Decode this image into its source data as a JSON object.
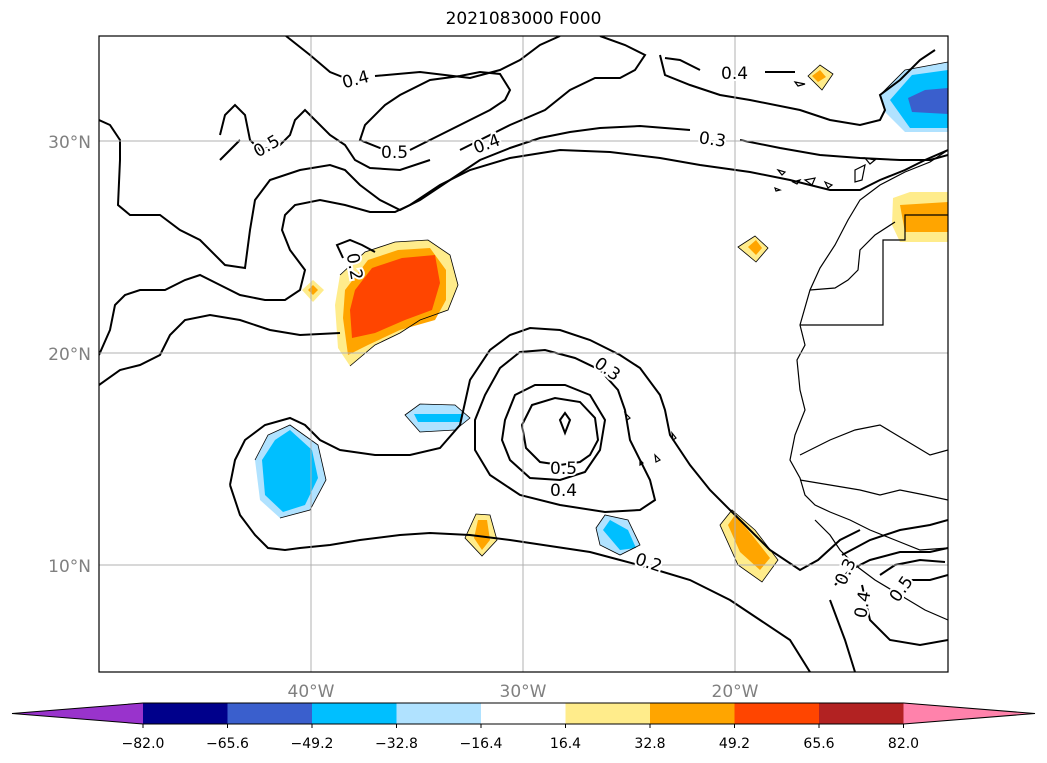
{
  "title": "2021083000 F000",
  "lat_labels": [
    "30°N",
    "20°N",
    "10°N"
  ],
  "lon_labels": [
    "40°W",
    "30°W",
    "20°W"
  ],
  "contour_labels": [
    "0.4",
    "0.5",
    "0.5",
    "0.4",
    "0.4",
    "0.3",
    "0.2",
    "0.3",
    "0.5",
    "0.4",
    "0.2",
    "0.3",
    "0.4",
    "0.5"
  ],
  "colorbar": {
    "ticks": [
      "−82.0",
      "−65.6",
      "−49.2",
      "−32.8",
      "−16.4",
      "16.4",
      "32.8",
      "49.2",
      "65.6",
      "82.0"
    ],
    "colors": [
      "#9933cc",
      "#00008b",
      "#3a5fcd",
      "#00bfff",
      "#b0e2ff",
      "#ffffff",
      "#ffec8b",
      "#ffa500",
      "#ff4500",
      "#b22222",
      "#ff82ab"
    ]
  }
}
